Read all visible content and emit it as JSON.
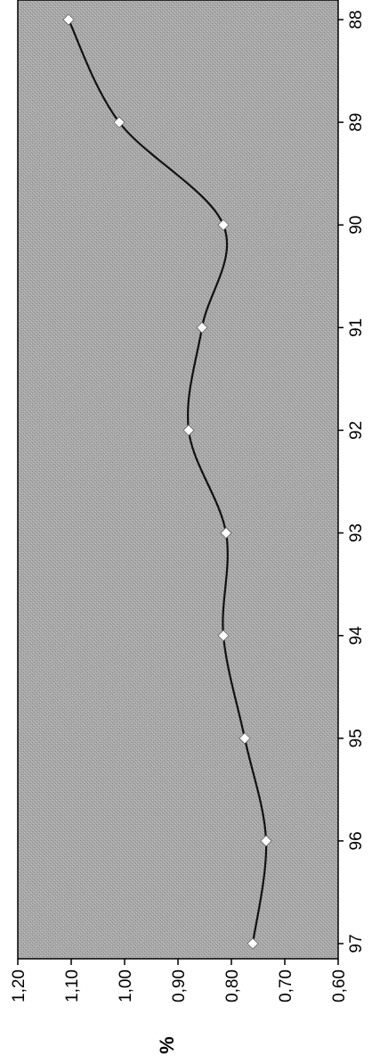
{
  "chart_data": {
    "type": "line",
    "orientation": "rotated-90-clockwise",
    "x": [
      "88",
      "89",
      "90",
      "91",
      "92",
      "93",
      "94",
      "95",
      "96",
      "97"
    ],
    "values": [
      1.105,
      1.01,
      0.815,
      0.855,
      0.88,
      0.81,
      0.815,
      0.775,
      0.735,
      0.76
    ],
    "ylim": [
      0.6,
      1.2
    ],
    "yticks": [
      "1,20",
      "1,10",
      "1,00",
      "0,90",
      "0,80",
      "0,70",
      "0,60"
    ],
    "ylabel": "%",
    "xlabel": "",
    "title": "",
    "grid": false,
    "smoothed": true,
    "colors": {
      "plot_background": "#a6a6a6",
      "line": "#111111",
      "marker": "#ffffff"
    }
  }
}
